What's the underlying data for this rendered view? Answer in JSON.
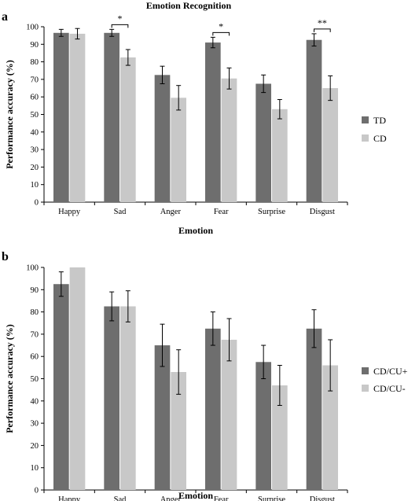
{
  "figure_title": "Emotion Recognition",
  "chart_data": [
    {
      "panel_label": "a",
      "type": "bar",
      "xlabel": "Emotion",
      "ylabel": "Performance accuracy (%)",
      "ylim": [
        0,
        100
      ],
      "yticks": [
        "0",
        "10",
        "20",
        "30",
        "40",
        "50",
        "60",
        "70",
        "80",
        "90",
        "100"
      ],
      "categories": [
        "Happy",
        "Sad",
        "Anger",
        "Fear",
        "Surprise",
        "Disgust"
      ],
      "legend_position": "right",
      "series": [
        {
          "name": "TD",
          "color": "#6e6e6e",
          "values": [
            96.5,
            96.5,
            72.5,
            91,
            67.5,
            92.5
          ],
          "errors": [
            2,
            2,
            5,
            3,
            5,
            3.5
          ]
        },
        {
          "name": "CD",
          "color": "#c8c8c8",
          "values": [
            96,
            82.5,
            59.5,
            70.5,
            53,
            65
          ],
          "errors": [
            3,
            4.5,
            7,
            6,
            5.5,
            7
          ]
        }
      ],
      "significance": [
        {
          "category": "Sad",
          "label": "*"
        },
        {
          "category": "Fear",
          "label": "*"
        },
        {
          "category": "Disgust",
          "label": "**"
        }
      ]
    },
    {
      "panel_label": "b",
      "type": "bar",
      "xlabel": "Emotion",
      "ylabel": "Performance accuracy (%)",
      "ylim": [
        0,
        100
      ],
      "yticks": [
        "0",
        "10",
        "20",
        "30",
        "40",
        "50",
        "60",
        "70",
        "80",
        "90",
        "100"
      ],
      "categories": [
        "Happy",
        "Sad",
        "Anger",
        "Fear",
        "Surprise",
        "Disgust"
      ],
      "legend_position": "right",
      "series": [
        {
          "name": "CD/CU+",
          "color": "#6e6e6e",
          "values": [
            92.5,
            82.5,
            65,
            72.5,
            57.5,
            72.5
          ],
          "errors": [
            5.5,
            6.5,
            9.5,
            7.5,
            7.5,
            8.5
          ]
        },
        {
          "name": "CD/CU-",
          "color": "#c8c8c8",
          "values": [
            100,
            82.5,
            53,
            67.5,
            47,
            56
          ],
          "errors": [
            0,
            7,
            10,
            9.5,
            9,
            11.5
          ]
        }
      ],
      "significance": []
    }
  ]
}
